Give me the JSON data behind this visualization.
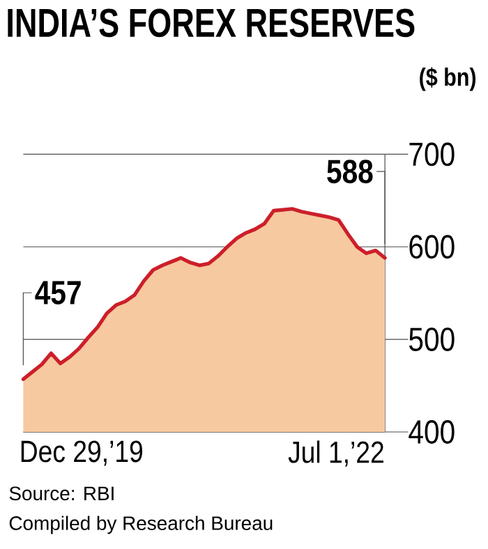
{
  "chart_data": {
    "type": "area",
    "title": "INDIA’S FOREX RESERVES",
    "subtitle": "($ bn)",
    "categories": [
      null,
      null,
      null,
      null,
      null,
      null,
      null,
      null,
      null,
      null,
      null,
      null,
      null,
      null,
      null,
      null,
      null,
      null,
      null,
      null,
      null,
      null,
      null,
      null,
      null,
      null,
      null,
      null,
      null,
      null,
      null,
      null,
      null,
      null,
      null,
      null,
      null,
      null,
      null,
      null
    ],
    "series": [
      {
        "color": "#cc1f2a",
        "values": [
          457,
          465,
          473,
          485,
          474,
          481,
          490,
          502,
          513,
          528,
          537,
          541,
          548,
          563,
          575,
          580,
          584,
          588,
          583,
          580,
          582,
          590,
          600,
          609,
          615,
          619,
          625,
          639,
          640,
          641,
          638,
          636,
          634,
          632,
          629,
          614,
          600,
          593,
          596,
          588
        ]
      }
    ],
    "ylim": [
      400,
      700
    ],
    "yticks": [
      400,
      500,
      600,
      700
    ],
    "grid": "y",
    "annotations": [
      "457",
      "588",
      "Dec 29,’19",
      "Jul 1,’22",
      "Source: RBI",
      "Compiled by Research Bureau"
    ]
  }
}
